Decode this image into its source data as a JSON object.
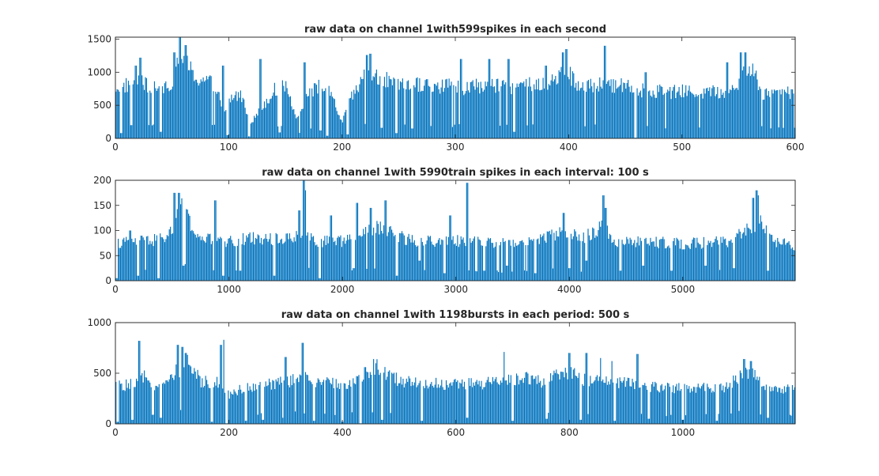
{
  "chart_data": [
    {
      "type": "bar",
      "title": "raw data on channel 1with599spikes in each second",
      "xlabel": "",
      "ylabel": "",
      "xlim": [
        0,
        600
      ],
      "ylim": [
        0,
        1530
      ],
      "xticks": [
        0,
        100,
        200,
        300,
        400,
        500,
        600
      ],
      "yticks": [
        0,
        500,
        1000,
        1500
      ],
      "bar_count": 600,
      "color": "#0072BD",
      "profile": [
        [
          0,
          800
        ],
        [
          10,
          830
        ],
        [
          20,
          880
        ],
        [
          30,
          800
        ],
        [
          40,
          780
        ],
        [
          50,
          900
        ],
        [
          55,
          1250
        ],
        [
          60,
          1300
        ],
        [
          65,
          1100
        ],
        [
          70,
          950
        ],
        [
          80,
          900
        ],
        [
          90,
          800
        ],
        [
          95,
          300
        ],
        [
          100,
          600
        ],
        [
          110,
          700
        ],
        [
          120,
          250
        ],
        [
          130,
          500
        ],
        [
          140,
          750
        ],
        [
          150,
          800
        ],
        [
          160,
          300
        ],
        [
          170,
          700
        ],
        [
          180,
          800
        ],
        [
          190,
          700
        ],
        [
          200,
          250
        ],
        [
          210,
          700
        ],
        [
          215,
          800
        ],
        [
          220,
          1000
        ],
        [
          230,
          950
        ],
        [
          240,
          900
        ],
        [
          250,
          800
        ],
        [
          260,
          830
        ],
        [
          270,
          850
        ],
        [
          280,
          800
        ],
        [
          300,
          820
        ],
        [
          310,
          780
        ],
        [
          320,
          830
        ],
        [
          330,
          820
        ],
        [
          340,
          800
        ],
        [
          360,
          820
        ],
        [
          380,
          850
        ],
        [
          390,
          950
        ],
        [
          395,
          1050
        ],
        [
          400,
          1000
        ],
        [
          410,
          800
        ],
        [
          420,
          820
        ],
        [
          430,
          830
        ],
        [
          440,
          800
        ],
        [
          450,
          870
        ],
        [
          460,
          780
        ],
        [
          470,
          720
        ],
        [
          480,
          750
        ],
        [
          490,
          720
        ],
        [
          500,
          730
        ],
        [
          520,
          720
        ],
        [
          540,
          730
        ],
        [
          550,
          900
        ],
        [
          555,
          1200
        ],
        [
          560,
          1050
        ],
        [
          565,
          1000
        ],
        [
          570,
          700
        ],
        [
          580,
          720
        ],
        [
          600,
          720
        ]
      ],
      "spikes": [
        [
          18,
          1100
        ],
        [
          22,
          1220
        ],
        [
          52,
          1300
        ],
        [
          57,
          1530
        ],
        [
          62,
          1410
        ],
        [
          95,
          1100
        ],
        [
          128,
          1200
        ],
        [
          167,
          1150
        ],
        [
          222,
          1260
        ],
        [
          225,
          1280
        ],
        [
          262,
          1100
        ],
        [
          305,
          1200
        ],
        [
          330,
          1200
        ],
        [
          347,
          1200
        ],
        [
          380,
          1100
        ],
        [
          395,
          1300
        ],
        [
          398,
          1350
        ],
        [
          432,
          1400
        ],
        [
          468,
          1000
        ],
        [
          540,
          1150
        ],
        [
          552,
          1300
        ],
        [
          556,
          1300
        ]
      ],
      "dips": [
        [
          5,
          80
        ],
        [
          14,
          200
        ],
        [
          40,
          100
        ],
        [
          99,
          50
        ],
        [
          118,
          30
        ],
        [
          145,
          90
        ],
        [
          181,
          120
        ],
        [
          187,
          40
        ],
        [
          205,
          60
        ],
        [
          235,
          160
        ],
        [
          248,
          80
        ],
        [
          262,
          150
        ],
        [
          352,
          100
        ],
        [
          459,
          10
        ]
      ]
    },
    {
      "type": "bar",
      "title": "raw data on channel 1with 5990train spikes in each interval: 100 s",
      "xlabel": "",
      "ylabel": "",
      "xlim": [
        0,
        5990
      ],
      "ylim": [
        0,
        200
      ],
      "xticks": [
        0,
        1000,
        2000,
        3000,
        4000,
        5000
      ],
      "yticks": [
        0,
        50,
        100,
        150,
        200
      ],
      "bar_count": 599,
      "color": "#0072BD",
      "profile": [
        [
          0,
          78
        ],
        [
          200,
          80
        ],
        [
          400,
          85
        ],
        [
          500,
          100
        ],
        [
          550,
          160
        ],
        [
          600,
          150
        ],
        [
          650,
          120
        ],
        [
          700,
          95
        ],
        [
          800,
          85
        ],
        [
          1000,
          80
        ],
        [
          1200,
          88
        ],
        [
          1400,
          85
        ],
        [
          1600,
          90
        ],
        [
          1650,
          110
        ],
        [
          1700,
          95
        ],
        [
          1800,
          80
        ],
        [
          2000,
          82
        ],
        [
          2200,
          95
        ],
        [
          2300,
          110
        ],
        [
          2400,
          100
        ],
        [
          2500,
          90
        ],
        [
          2700,
          80
        ],
        [
          3000,
          82
        ],
        [
          3200,
          80
        ],
        [
          3400,
          78
        ],
        [
          3700,
          84
        ],
        [
          3900,
          95
        ],
        [
          4000,
          100
        ],
        [
          4100,
          85
        ],
        [
          4300,
          110
        ],
        [
          4400,
          80
        ],
        [
          4700,
          80
        ],
        [
          5000,
          76
        ],
        [
          5400,
          80
        ],
        [
          5600,
          110
        ],
        [
          5700,
          120
        ],
        [
          5800,
          80
        ],
        [
          5990,
          72
        ]
      ],
      "spikes": [
        [
          130,
          100
        ],
        [
          520,
          175
        ],
        [
          560,
          175
        ],
        [
          600,
          175
        ],
        [
          880,
          160
        ],
        [
          1620,
          140
        ],
        [
          1660,
          200
        ],
        [
          1670,
          180
        ],
        [
          1900,
          130
        ],
        [
          2130,
          155
        ],
        [
          2250,
          145
        ],
        [
          2380,
          160
        ],
        [
          2950,
          130
        ],
        [
          3100,
          195
        ],
        [
          3950,
          135
        ],
        [
          4300,
          170
        ],
        [
          4320,
          145
        ],
        [
          5620,
          165
        ],
        [
          5650,
          180
        ],
        [
          5660,
          170
        ]
      ],
      "dips": [
        [
          10,
          5
        ],
        [
          200,
          10
        ],
        [
          380,
          5
        ],
        [
          600,
          30
        ],
        [
          950,
          10
        ],
        [
          1100,
          20
        ],
        [
          1400,
          10
        ],
        [
          1800,
          5
        ],
        [
          2100,
          25
        ],
        [
          2480,
          10
        ],
        [
          2680,
          40
        ],
        [
          2900,
          15
        ],
        [
          3250,
          20
        ],
        [
          3450,
          30
        ],
        [
          3700,
          15
        ],
        [
          4000,
          25
        ],
        [
          4150,
          40
        ],
        [
          4450,
          20
        ],
        [
          4650,
          30
        ],
        [
          4900,
          20
        ],
        [
          5200,
          30
        ],
        [
          5450,
          25
        ],
        [
          5750,
          20
        ]
      ]
    },
    {
      "type": "bar",
      "title": "raw data on channel 1with 1198bursts in each period: 500 s",
      "xlabel": "",
      "ylabel": "",
      "xlim": [
        0,
        1198
      ],
      "ylim": [
        0,
        1000
      ],
      "xticks": [
        0,
        200,
        400,
        600,
        800,
        1000
      ],
      "yticks": [
        0,
        500,
        1000
      ],
      "bar_count": 599,
      "color": "#0072BD",
      "profile": [
        [
          0,
          390
        ],
        [
          40,
          400
        ],
        [
          50,
          480
        ],
        [
          60,
          400
        ],
        [
          90,
          400
        ],
        [
          110,
          550
        ],
        [
          130,
          620
        ],
        [
          150,
          430
        ],
        [
          180,
          430
        ],
        [
          200,
          300
        ],
        [
          220,
          350
        ],
        [
          260,
          400
        ],
        [
          300,
          420
        ],
        [
          330,
          480
        ],
        [
          350,
          420
        ],
        [
          400,
          400
        ],
        [
          440,
          470
        ],
        [
          460,
          600
        ],
        [
          480,
          480
        ],
        [
          520,
          420
        ],
        [
          600,
          400
        ],
        [
          680,
          420
        ],
        [
          720,
          480
        ],
        [
          760,
          420
        ],
        [
          780,
          500
        ],
        [
          800,
          520
        ],
        [
          820,
          460
        ],
        [
          860,
          430
        ],
        [
          900,
          420
        ],
        [
          930,
          380
        ],
        [
          960,
          370
        ],
        [
          1000,
          360
        ],
        [
          1080,
          380
        ],
        [
          1110,
          540
        ],
        [
          1130,
          480
        ],
        [
          1140,
          380
        ],
        [
          1198,
          350
        ]
      ],
      "spikes": [
        [
          42,
          820
        ],
        [
          110,
          780
        ],
        [
          118,
          760
        ],
        [
          124,
          700
        ],
        [
          186,
          780
        ],
        [
          191,
          830
        ],
        [
          300,
          660
        ],
        [
          330,
          800
        ],
        [
          440,
          560
        ],
        [
          455,
          640
        ],
        [
          685,
          710
        ],
        [
          800,
          700
        ],
        [
          830,
          700
        ],
        [
          855,
          650
        ],
        [
          875,
          620
        ],
        [
          920,
          690
        ],
        [
          1108,
          640
        ],
        [
          1120,
          620
        ]
      ],
      "dips": [
        [
          4,
          20
        ],
        [
          30,
          40
        ],
        [
          80,
          60
        ],
        [
          170,
          20
        ],
        [
          196,
          5
        ],
        [
          230,
          30
        ],
        [
          260,
          40
        ],
        [
          295,
          60
        ],
        [
          350,
          30
        ],
        [
          400,
          20
        ],
        [
          432,
          5
        ],
        [
          470,
          40
        ],
        [
          540,
          30
        ],
        [
          620,
          60
        ],
        [
          700,
          30
        ],
        [
          760,
          50
        ],
        [
          820,
          40
        ],
        [
          880,
          30
        ],
        [
          940,
          50
        ],
        [
          1000,
          40
        ],
        [
          1060,
          30
        ],
        [
          1150,
          60
        ]
      ]
    }
  ]
}
